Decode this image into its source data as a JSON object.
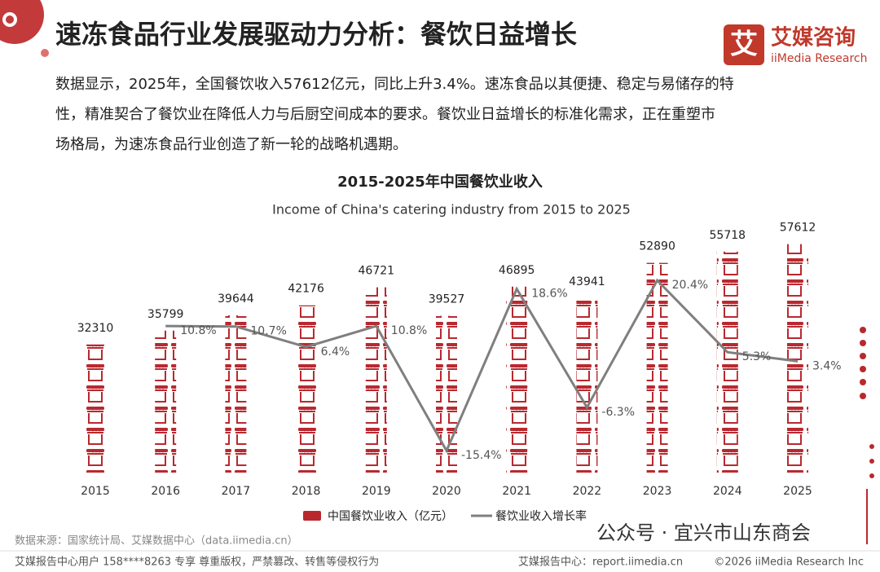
{
  "page": {
    "title": "速冻食品行业发展驱动力分析：餐饮日益增长",
    "paragraph": [
      "数据显示，2025年，全国餐饮收入57612亿元，同比上升3.4%。速冻食品以其便捷、稳定与易储存的特",
      "性，精准契合了餐饮业在降低人力与后厨空间成本的要求。餐饮业日益增长的标准化需求，正在重塑市",
      "场格局，为速冻食品行业创造了新一轮的战略机遇期。"
    ],
    "logo_mark": "艾",
    "logo_name": "艾媒咨询",
    "logo_sub": "iiMedia Research",
    "source": "数据来源：国家统计局、艾媒数据中心（data.iimedia.cn）",
    "footer_left": "艾媒报告中心用户 158****8263 专享 尊重版权，严禁篡改、转售等侵权行为",
    "footer_mid": "艾媒报告中心：report.iimedia.cn",
    "footer_right": "©2026  iiMedia Research  Inc",
    "watermark": "公众号 · 宜兴市山东商会"
  },
  "chart_data": {
    "type": "bar-line",
    "title": "2015-2025年中国餐饮业收入",
    "subtitle": "Income of China's catering industry from 2015 to 2025",
    "categories": [
      "2015",
      "2016",
      "2017",
      "2018",
      "2019",
      "2020",
      "2021",
      "2022",
      "2023",
      "2024",
      "2025"
    ],
    "ylim": [
      0,
      60000
    ],
    "y2lim": [
      -20,
      30
    ],
    "series": [
      {
        "name": "中国餐饮业收入（亿元）",
        "type": "bar",
        "color": "#b8292f",
        "values": [
          32310,
          35799,
          39644,
          42176,
          46721,
          39527,
          46895,
          43941,
          52890,
          55718,
          57612
        ]
      },
      {
        "name": "餐饮业收入增长率",
        "type": "line",
        "color": "#7f7f7f",
        "axis": "y2",
        "values": [
          null,
          10.8,
          10.7,
          6.4,
          10.8,
          -15.4,
          18.6,
          -6.3,
          20.4,
          5.3,
          3.4
        ],
        "value_labels": [
          null,
          "10.8%",
          "10.7%",
          "6.4%",
          "10.8%",
          "-15.4%",
          "18.6%",
          "-6.3%",
          "20.4%",
          "5.3%",
          "3.4%"
        ]
      }
    ]
  }
}
